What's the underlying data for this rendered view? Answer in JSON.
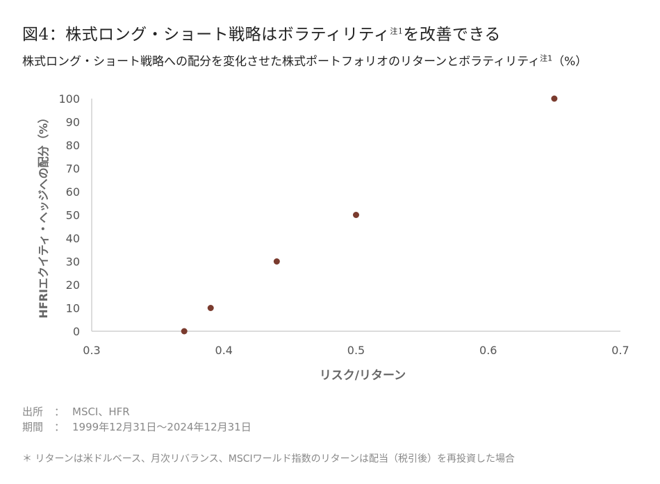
{
  "title": {
    "main": "図4：株式ロング・ショート戦略はボラティリティ",
    "sup": "注1",
    "tail": "を改善できる"
  },
  "subtitle": {
    "main": "株式ロング・ショート戦略への配分を変化させた株式ポートフォリオのリターンとボラティリティ",
    "sup": "注1",
    "tail": "（%）"
  },
  "chart_data": {
    "type": "scatter",
    "xlabel": "リスク/リターン",
    "ylabel": "HFRIエクイティ・ヘッジへの配分（%）",
    "xlim": [
      0.3,
      0.7
    ],
    "ylim": [
      0,
      100
    ],
    "x_ticks": [
      "0.3",
      "0.4",
      "0.5",
      "0.6",
      "0.7"
    ],
    "y_ticks": [
      "0",
      "10",
      "20",
      "30",
      "40",
      "50",
      "60",
      "70",
      "80",
      "90",
      "100"
    ],
    "grid": false,
    "points": [
      {
        "x": 0.37,
        "y": 0
      },
      {
        "x": 0.39,
        "y": 10
      },
      {
        "x": 0.44,
        "y": 30
      },
      {
        "x": 0.5,
        "y": 50
      },
      {
        "x": 0.65,
        "y": 100
      }
    ],
    "marker_color": "#7a3b2e",
    "axis_color": "#d0d0d0"
  },
  "footer": {
    "source_label": "出所",
    "source_sep": "：",
    "source_value": "MSCI、HFR",
    "period_label": "期間",
    "period_sep": "：",
    "period_value": "1999年12月31日～2024年12月31日",
    "note": "＊ リターンは米ドルベース、月次リバランス、MSCIワールド指数のリターンは配当（税引後）を再投資した場合"
  }
}
